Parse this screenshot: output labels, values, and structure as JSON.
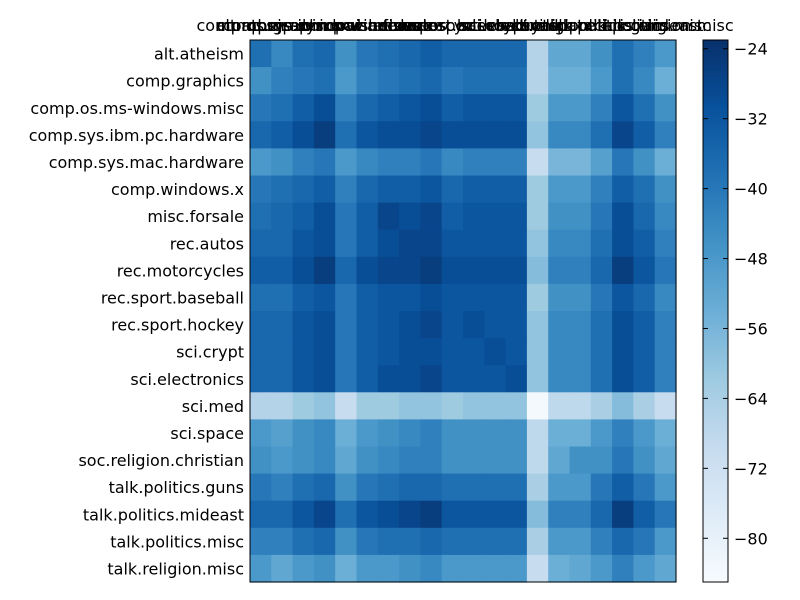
{
  "chart_data": {
    "type": "heatmap",
    "title": "",
    "xlabel": "",
    "ylabel": "",
    "grid": false,
    "categories": [
      "alt.atheism",
      "comp.graphics",
      "comp.os.ms-windows.misc",
      "comp.sys.ibm.pc.hardware",
      "comp.sys.mac.hardware",
      "comp.windows.x",
      "misc.forsale",
      "rec.autos",
      "rec.motorcycles",
      "rec.sport.baseball",
      "rec.sport.hockey",
      "sci.crypt",
      "sci.electronics",
      "sci.med",
      "sci.space",
      "soc.religion.christian",
      "talk.politics.guns",
      "talk.politics.mideast",
      "talk.politics.misc",
      "talk.religion.misc"
    ],
    "row_labels": [
      "alt.atheism",
      "comp.graphics",
      "comp.os.ms-windows.misc",
      "comp.sys.ibm.pc.hardware",
      "comp.sys.mac.hardware",
      "comp.windows.x",
      "misc.forsale",
      "rec.autos",
      "rec.motorcycles",
      "rec.sport.baseball",
      "rec.sport.hockey",
      "sci.crypt",
      "sci.electronics",
      "sci.med",
      "sci.space",
      "soc.religion.christian",
      "talk.politics.guns",
      "talk.politics.mideast",
      "talk.politics.misc",
      "talk.religion.misc"
    ],
    "col_labels": [
      "alt.atheism",
      "comp.graphics",
      "comp.os.ms-windows.misc",
      "comp.sys.ibm.pc.hardware",
      "comp.sys.mac.hardware",
      "comp.windows.x",
      "misc.forsale",
      "rec.autos",
      "rec.motorcycles",
      "rec.sport.baseball",
      "rec.sport.hockey",
      "sci.crypt",
      "sci.electronics",
      "sci.med",
      "sci.space",
      "soc.religion.christian",
      "talk.politics.guns",
      "talk.politics.mideast",
      "talk.politics.misc",
      "talk.religion.misc"
    ],
    "colormap": "Blues_r",
    "colorbar": {
      "min": -85,
      "max": -23,
      "ticks": [
        -24,
        -32,
        -40,
        -48,
        -56,
        -64,
        -72,
        -80
      ],
      "tick_labels": [
        "−24",
        "−32",
        "−40",
        "−48",
        "−56",
        "−64",
        "−72",
        "−80"
      ]
    },
    "values": [
      [
        -38,
        -44,
        -38,
        -36,
        -46,
        -40,
        -38,
        -36,
        -34,
        -36,
        -36,
        -36,
        -36,
        -66,
        -52,
        -52,
        -46,
        -38,
        -42,
        -48
      ],
      [
        -46,
        -42,
        -40,
        -38,
        -48,
        -42,
        -40,
        -38,
        -36,
        -40,
        -38,
        -38,
        -38,
        -66,
        -54,
        -54,
        -48,
        -38,
        -44,
        -54
      ],
      [
        -40,
        -38,
        -34,
        -30,
        -42,
        -36,
        -34,
        -32,
        -30,
        -34,
        -32,
        -32,
        -32,
        -62,
        -48,
        -48,
        -42,
        -32,
        -38,
        -46
      ],
      [
        -36,
        -34,
        -30,
        -26,
        -38,
        -32,
        -30,
        -30,
        -28,
        -30,
        -30,
        -30,
        -30,
        -60,
        -44,
        -44,
        -38,
        -28,
        -34,
        -42
      ],
      [
        -48,
        -46,
        -42,
        -40,
        -48,
        -44,
        -42,
        -42,
        -40,
        -44,
        -42,
        -42,
        -42,
        -70,
        -56,
        -56,
        -50,
        -40,
        -46,
        -54
      ],
      [
        -40,
        -38,
        -36,
        -34,
        -42,
        -36,
        -34,
        -34,
        -32,
        -36,
        -34,
        -34,
        -34,
        -62,
        -48,
        -48,
        -42,
        -34,
        -38,
        -46
      ],
      [
        -38,
        -36,
        -34,
        -30,
        -40,
        -34,
        -28,
        -30,
        -28,
        -34,
        -32,
        -32,
        -32,
        -62,
        -46,
        -46,
        -40,
        -30,
        -36,
        -44
      ],
      [
        -36,
        -36,
        -32,
        -30,
        -40,
        -34,
        -30,
        -28,
        -28,
        -32,
        -32,
        -32,
        -32,
        -60,
        -44,
        -44,
        -38,
        -30,
        -34,
        -42
      ],
      [
        -34,
        -34,
        -30,
        -26,
        -36,
        -30,
        -28,
        -28,
        -26,
        -30,
        -30,
        -30,
        -30,
        -58,
        -42,
        -42,
        -36,
        -26,
        -32,
        -40
      ],
      [
        -38,
        -38,
        -34,
        -32,
        -40,
        -34,
        -32,
        -32,
        -30,
        -32,
        -32,
        -32,
        -32,
        -62,
        -46,
        -46,
        -40,
        -32,
        -36,
        -44
      ],
      [
        -36,
        -36,
        -32,
        -30,
        -40,
        -34,
        -32,
        -30,
        -28,
        -32,
        -30,
        -32,
        -32,
        -60,
        -44,
        -44,
        -38,
        -30,
        -34,
        -42
      ],
      [
        -36,
        -36,
        -32,
        -30,
        -40,
        -34,
        -32,
        -30,
        -30,
        -32,
        -32,
        -30,
        -32,
        -60,
        -44,
        -44,
        -38,
        -30,
        -34,
        -42
      ],
      [
        -36,
        -36,
        -32,
        -30,
        -40,
        -34,
        -30,
        -30,
        -28,
        -32,
        -32,
        -32,
        -30,
        -60,
        -44,
        -44,
        -38,
        -30,
        -34,
        -42
      ],
      [
        -66,
        -66,
        -62,
        -60,
        -70,
        -62,
        -62,
        -60,
        -60,
        -62,
        -60,
        -60,
        -60,
        -84,
        -68,
        -68,
        -64,
        -58,
        -64,
        -70
      ],
      [
        -48,
        -50,
        -46,
        -44,
        -54,
        -48,
        -46,
        -44,
        -42,
        -46,
        -46,
        -46,
        -46,
        -68,
        -54,
        -54,
        -48,
        -42,
        -48,
        -54
      ],
      [
        -46,
        -48,
        -46,
        -44,
        -52,
        -46,
        -44,
        -42,
        -42,
        -46,
        -46,
        -46,
        -46,
        -68,
        -52,
        -46,
        -46,
        -40,
        -46,
        -52
      ],
      [
        -40,
        -42,
        -38,
        -36,
        -46,
        -40,
        -38,
        -36,
        -36,
        -38,
        -38,
        -38,
        -38,
        -64,
        -48,
        -48,
        -40,
        -34,
        -40,
        -48
      ],
      [
        -36,
        -36,
        -32,
        -28,
        -38,
        -32,
        -30,
        -28,
        -26,
        -32,
        -32,
        -32,
        -32,
        -58,
        -42,
        -42,
        -36,
        -26,
        -34,
        -40
      ],
      [
        -42,
        -42,
        -38,
        -36,
        -46,
        -40,
        -38,
        -38,
        -36,
        -38,
        -38,
        -38,
        -38,
        -64,
        -48,
        -48,
        -42,
        -36,
        -40,
        -48
      ],
      [
        -48,
        -52,
        -48,
        -46,
        -54,
        -48,
        -48,
        -46,
        -44,
        -48,
        -48,
        -48,
        -48,
        -70,
        -54,
        -52,
        -48,
        -42,
        -48,
        -52
      ]
    ]
  }
}
